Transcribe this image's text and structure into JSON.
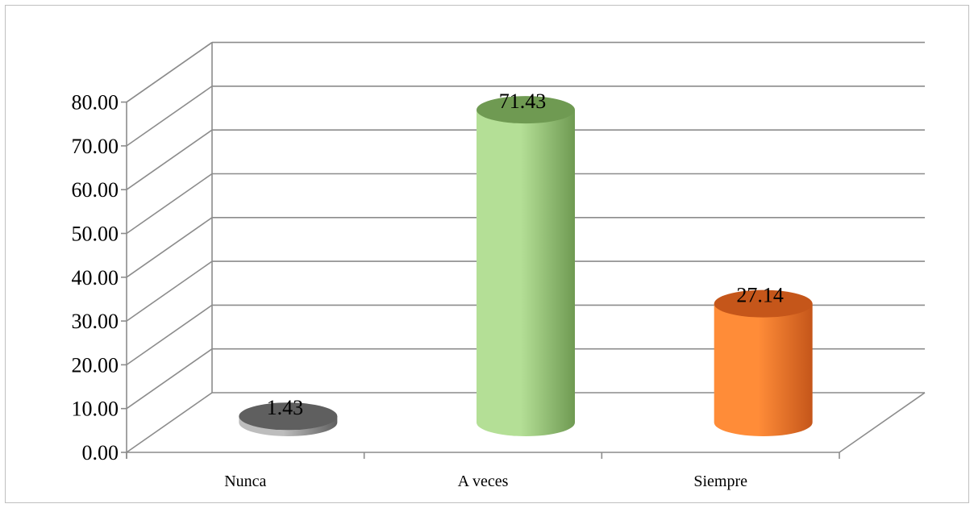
{
  "chart_data": {
    "type": "bar",
    "style": "3d-cylinder",
    "categories": [
      "Nunca",
      "A veces",
      "Siempre"
    ],
    "values": [
      1.43,
      71.43,
      27.14
    ],
    "value_labels": [
      "1.43",
      "71.43",
      "27.14"
    ],
    "y_ticks": [
      "0.00",
      "10.00",
      "20.00",
      "30.00",
      "40.00",
      "50.00",
      "60.00",
      "70.00",
      "80.00"
    ],
    "ylim": [
      0,
      80
    ],
    "grid": true,
    "legend": "none",
    "colors": {
      "Nunca": [
        "#5f5f5f",
        "#bdbdbd"
      ],
      "A veces": [
        "#6f9a52",
        "#b4df96"
      ],
      "Siempre": [
        "#c5561a",
        "#ff8c38"
      ]
    }
  }
}
